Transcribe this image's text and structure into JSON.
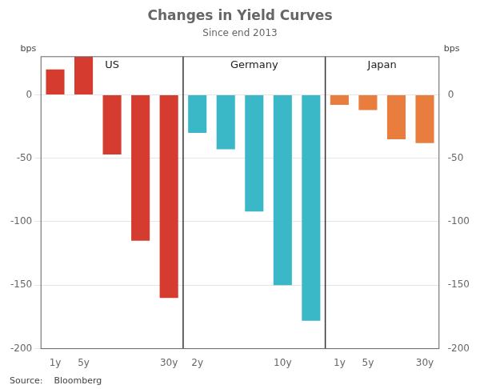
{
  "chart_data": {
    "type": "bar",
    "title": "Changes in Yield Curves",
    "subtitle": "Since end 2013",
    "source": "Source:    Bloomberg",
    "ylabel": "bps",
    "y2label": "bps",
    "ylim": [
      -200,
      30
    ],
    "yticks": [
      -200,
      -150,
      -100,
      -50,
      0
    ],
    "y2lim": [
      -200,
      30
    ],
    "y2ticks": [
      -200,
      -150,
      -100,
      -50,
      0
    ],
    "grid": true,
    "sections": [
      {
        "label": "US",
        "color": "#d63b2f",
        "categories": [
          "1y",
          "5y",
          null,
          null,
          "30y"
        ],
        "values": [
          20,
          30,
          -47,
          -115,
          -160
        ]
      },
      {
        "label": "Germany",
        "color": "#3ab8c8",
        "categories": [
          "2y",
          null,
          null,
          "10y",
          null
        ],
        "values": [
          -30,
          -43,
          -92,
          -150,
          -178
        ]
      },
      {
        "label": "Japan",
        "color": "#e87d3e",
        "categories": [
          "1y",
          "5y",
          null,
          "30y"
        ],
        "values": [
          -8,
          -12,
          -35,
          -38
        ]
      }
    ]
  }
}
